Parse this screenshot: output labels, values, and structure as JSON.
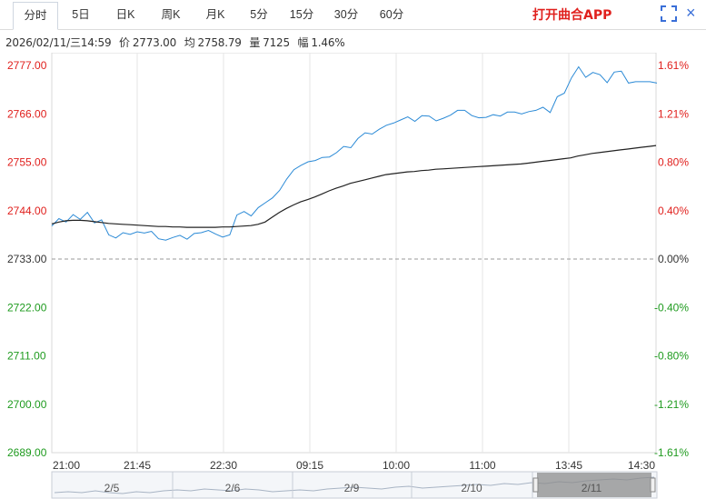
{
  "tabs": [
    {
      "label": "分时",
      "active": true
    },
    {
      "label": "5日",
      "active": false
    },
    {
      "label": "日K",
      "active": false
    },
    {
      "label": "周K",
      "active": false
    },
    {
      "label": "月K",
      "active": false
    },
    {
      "label": "5分",
      "active": false
    },
    {
      "label": "15分",
      "active": false
    },
    {
      "label": "30分",
      "active": false
    },
    {
      "label": "60分",
      "active": false
    }
  ],
  "app_link": "打开曲合APP",
  "info": {
    "datetime": "2026/02/11/三14:59",
    "price_label": "价",
    "price": "2773.00",
    "avg_label": "均",
    "avg": "2758.79",
    "volume_label": "量",
    "volume": "7125",
    "amplitude_label": "幅",
    "amplitude": "1.46%"
  },
  "colors": {
    "up": "#e0201d",
    "down": "#1f9b1f",
    "flat": "#333333",
    "price_line": "#2b8ad6",
    "avg_line": "#222222",
    "grid": "#e6e6e6"
  },
  "chart_data": {
    "type": "line",
    "reference": 2733.0,
    "ylim": [
      2689.0,
      2777.0
    ],
    "y_ticks_left": [
      "2777.00",
      "2766.00",
      "2755.00",
      "2744.00",
      "2733.00",
      "2722.00",
      "2711.00",
      "2700.00",
      "2689.00"
    ],
    "y_ticks_right": [
      "1.61%",
      "1.21%",
      "0.80%",
      "0.40%",
      "0.00%",
      "-0.40%",
      "-0.80%",
      "-1.21%",
      "-1.61%"
    ],
    "x_ticks": [
      "21:00",
      "21:45",
      "22:30",
      "09:15",
      "10:00",
      "11:00",
      "13:45",
      "14:30"
    ],
    "series": [
      {
        "name": "价",
        "values": [
          2740.5,
          2742.2,
          2741.4,
          2743.1,
          2742.0,
          2743.6,
          2741.2,
          2741.9,
          2738.5,
          2737.8,
          2739.0,
          2738.6,
          2739.2,
          2738.9,
          2739.3,
          2737.6,
          2737.3,
          2737.9,
          2738.4,
          2737.5,
          2738.8,
          2739.0,
          2739.5,
          2738.7,
          2738.0,
          2738.5,
          2743.0,
          2743.8,
          2742.8,
          2744.7,
          2745.8,
          2746.9,
          2748.6,
          2751.2,
          2753.3,
          2754.3,
          2755.1,
          2755.4,
          2756.1,
          2756.2,
          2757.2,
          2758.6,
          2758.3,
          2760.4,
          2761.7,
          2761.4,
          2762.5,
          2763.4,
          2763.9,
          2764.6,
          2765.3,
          2764.3,
          2765.6,
          2765.5,
          2764.4,
          2765.0,
          2765.7,
          2766.8,
          2766.8,
          2765.6,
          2765.1,
          2765.2,
          2765.8,
          2765.5,
          2766.4,
          2766.4,
          2766.0,
          2766.5,
          2766.8,
          2767.5,
          2766.3,
          2769.9,
          2770.7,
          2774.2,
          2776.7,
          2774.3,
          2775.4,
          2774.9,
          2773.1,
          2775.5,
          2775.7,
          2773.0,
          2773.3,
          2773.3,
          2773.3,
          2773.0
        ],
        "color": "#2b8ad6"
      },
      {
        "name": "均",
        "values": [
          2741.0,
          2741.4,
          2741.7,
          2741.8,
          2741.8,
          2741.7,
          2741.5,
          2741.3,
          2741.1,
          2741.0,
          2740.9,
          2740.8,
          2740.7,
          2740.6,
          2740.5,
          2740.4,
          2740.4,
          2740.3,
          2740.3,
          2740.2,
          2740.2,
          2740.2,
          2740.2,
          2740.2,
          2740.3,
          2740.3,
          2740.4,
          2740.5,
          2740.6,
          2740.9,
          2741.4,
          2742.5,
          2743.6,
          2744.5,
          2745.3,
          2746.0,
          2746.5,
          2747.1,
          2747.8,
          2748.5,
          2749.1,
          2749.6,
          2750.2,
          2750.6,
          2751.0,
          2751.4,
          2751.8,
          2752.2,
          2752.4,
          2752.6,
          2752.8,
          2752.9,
          2753.1,
          2753.2,
          2753.4,
          2753.5,
          2753.6,
          2753.7,
          2753.8,
          2753.9,
          2754.0,
          2754.1,
          2754.2,
          2754.3,
          2754.4,
          2754.5,
          2754.6,
          2754.8,
          2755.0,
          2755.2,
          2755.4,
          2755.6,
          2755.8,
          2756.0,
          2756.4,
          2756.7,
          2757.0,
          2757.2,
          2757.4,
          2757.6,
          2757.8,
          2758.0,
          2758.2,
          2758.4,
          2758.6,
          2758.8
        ],
        "color": "#222222"
      }
    ]
  },
  "navigator": {
    "labels": [
      "2/5",
      "2/6",
      "2/9",
      "2/10",
      "2/11"
    ],
    "scroll_left_icon": "chevron-left-icon",
    "scroll_right_icon": "chevron-right-icon"
  }
}
